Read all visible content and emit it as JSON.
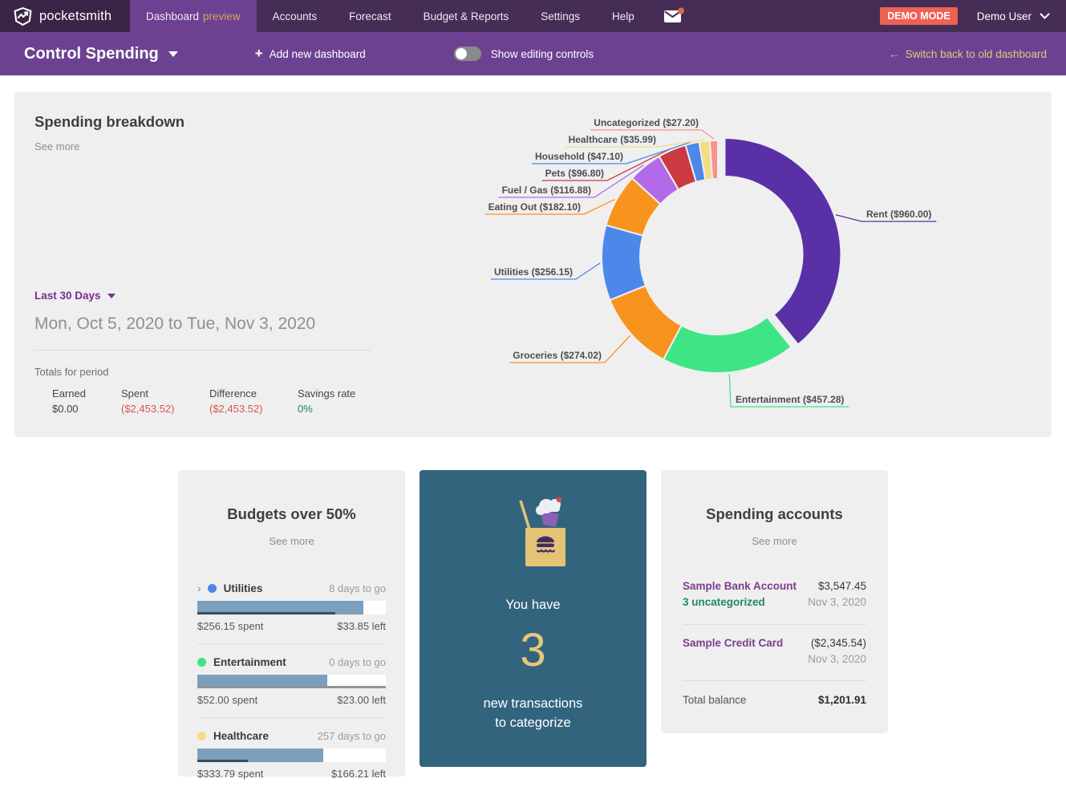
{
  "nav": {
    "brand": "pocketsmith",
    "items": [
      {
        "label": "Dashboard",
        "suffix": "preview",
        "active": true
      },
      {
        "label": "Accounts"
      },
      {
        "label": "Forecast"
      },
      {
        "label": "Budget & Reports"
      },
      {
        "label": "Settings"
      },
      {
        "label": "Help"
      }
    ],
    "demo_badge": "DEMO MODE",
    "user": "Demo User"
  },
  "dashbar": {
    "title": "Control Spending",
    "add_label": "Add new dashboard",
    "editing_toggle_label": "Show editing controls",
    "editing_toggle_state": "off",
    "switch_link": "Switch back to old dashboard",
    "back_arrow": "←",
    "plus": "+"
  },
  "spending_breakdown": {
    "title": "Spending breakdown",
    "see_more": "See more",
    "period_selector": "Last 30 Days",
    "date_range": "Mon, Oct 5, 2020 to Tue, Nov 3, 2020",
    "totals_label": "Totals for period",
    "totals": [
      {
        "label": "Earned",
        "value": "$0.00",
        "tone": "dark"
      },
      {
        "label": "Spent",
        "value": "($2,453.52)",
        "tone": "red"
      },
      {
        "label": "Difference",
        "value": "($2,453.52)",
        "tone": "red"
      },
      {
        "label": "Savings rate",
        "value": "0%",
        "tone": "green"
      }
    ]
  },
  "chart_data": {
    "type": "pie",
    "title": "Spending breakdown by category, Last 30 Days",
    "donut": true,
    "start_angle_deg": 0,
    "direction": "clockwise",
    "total": 2453.52,
    "points": [
      {
        "category": "Rent",
        "value": 960.0,
        "label": "Rent ($960.00)",
        "color": "#5930a5",
        "exploded": true
      },
      {
        "category": "Entertainment",
        "value": 457.28,
        "label": "Entertainment ($457.28)",
        "color": "#3ee584"
      },
      {
        "category": "Groceries",
        "value": 274.02,
        "label": "Groceries ($274.02)",
        "color": "#f8941d"
      },
      {
        "category": "Utilities",
        "value": 256.15,
        "label": "Utilities ($256.15)",
        "color": "#4d87ea"
      },
      {
        "category": "Eating Out",
        "value": 182.1,
        "label": "Eating Out ($182.10)",
        "color": "#f8941d"
      },
      {
        "category": "Fuel / Gas",
        "value": 116.88,
        "label": "Fuel / Gas ($116.88)",
        "color": "#b36ae8"
      },
      {
        "category": "Pets",
        "value": 96.8,
        "label": "Pets ($96.80)",
        "color": "#cb3a41"
      },
      {
        "category": "Household",
        "value": 47.1,
        "label": "Household ($47.10)",
        "color": "#4d87ea"
      },
      {
        "category": "Healthcare",
        "value": 35.99,
        "label": "Healthcare ($35.99)",
        "color": "#f2dd85"
      },
      {
        "category": "Uncategorized",
        "value": 27.2,
        "label": "Uncategorized ($27.20)",
        "color": "#f8918c"
      }
    ]
  },
  "budgets": {
    "title": "Budgets over 50%",
    "see_more": "See more",
    "rows": [
      {
        "name": "Utilities",
        "dot_color": "#4d87ea",
        "days": "8 days to go",
        "spent": "$256.15 spent",
        "left": "$33.85 left",
        "fill_pct": 88,
        "elapsed_pct": 73,
        "elapsed_color": "#3e4d5a",
        "has_chevron": true
      },
      {
        "name": "Entertainment",
        "dot_color": "#3ee584",
        "days": "0 days to go",
        "spent": "$52.00 spent",
        "left": "$23.00 left",
        "fill_pct": 69,
        "elapsed_pct": 100,
        "elapsed_color": "#8d959c",
        "has_chevron": false
      },
      {
        "name": "Healthcare",
        "dot_color": "#f2dd85",
        "days": "257 days to go",
        "spent": "$333.79 spent",
        "left": "$166.21 left",
        "fill_pct": 67,
        "elapsed_pct": 27,
        "elapsed_color": "#3e4d5a",
        "has_chevron": false
      }
    ]
  },
  "transactions_card": {
    "line1": "You have",
    "count": "3",
    "line2": "new transactions",
    "line3": "to categorize"
  },
  "accounts": {
    "title": "Spending accounts",
    "see_more": "See more",
    "rows": [
      {
        "name": "Sample Bank Account",
        "sub": "3 uncategorized",
        "amount": "$3,547.45",
        "date": "Nov 3, 2020"
      },
      {
        "name": "Sample Credit Card",
        "sub": "",
        "amount": "($2,345.54)",
        "date": "Nov 3, 2020"
      }
    ],
    "total_label": "Total balance",
    "total_value": "$1,201.91"
  },
  "colors": {
    "nav_bg": "#462d55",
    "brand_bg": "#3a2547",
    "active_bar": "#6d4191",
    "accent_gold": "#d2a558",
    "demo_red": "#ee6155",
    "card_bg": "#efeff0",
    "txn_card_bg": "#33647e",
    "bar_fill": "#7ba0be",
    "neg_red": "#d6554d",
    "pos_green": "#0d8a63"
  }
}
